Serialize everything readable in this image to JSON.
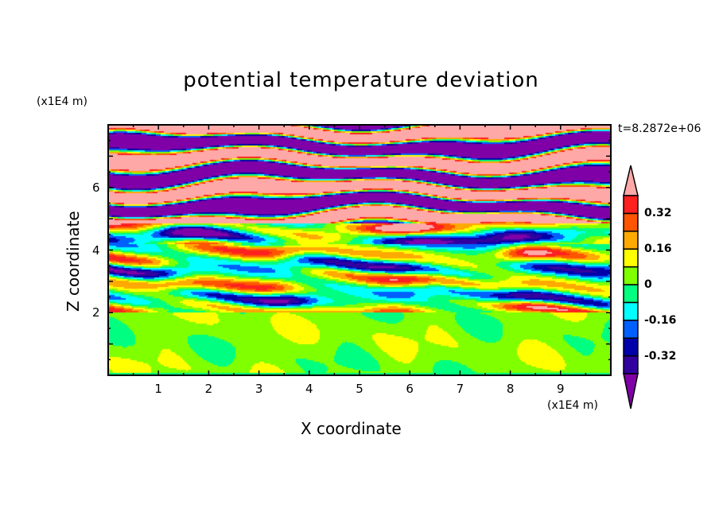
{
  "chart_data": {
    "type": "heatmap",
    "subtype": "filled-contour",
    "title": "potential temperature deviation",
    "xlabel": "X coordinate",
    "ylabel": "Z coordinate",
    "x_units": "(x1E4 m)",
    "z_units": "(x1E4 m)",
    "time_label": "t=8.2872e+06",
    "xlim": [
      0,
      10
    ],
    "ylim": [
      0,
      8
    ],
    "x_ticks": [
      "1",
      "2",
      "3",
      "4",
      "5",
      "6",
      "7",
      "8",
      "9"
    ],
    "y_ticks": [
      "2",
      "4",
      "6"
    ],
    "colorbar": {
      "levels": [
        -0.4,
        -0.32,
        -0.24,
        -0.16,
        -0.08,
        0,
        0.08,
        0.16,
        0.24,
        0.32,
        0.4
      ],
      "labels": [
        "0.32",
        "0.16",
        "0",
        "-0.16",
        "-0.32"
      ],
      "label_values": [
        0.32,
        0.16,
        0,
        -0.16,
        -0.32
      ],
      "colors_low_to_high": [
        "#8000a8",
        "#3300a0",
        "#0000aa",
        "#0060ff",
        "#00ffff",
        "#00ff80",
        "#80ff00",
        "#ffff00",
        "#ffaa00",
        "#ff5500",
        "#ff2020",
        "#ffa8a8"
      ],
      "extend": "both"
    },
    "description_regions": [
      {
        "z_range": [
          5,
          8
        ],
        "pattern": "alternating layers above 0.4 and below -0.4"
      },
      {
        "z_range": [
          2,
          5
        ],
        "pattern": "mixed layered values between -0.4 and 0.4"
      },
      {
        "z_range": [
          0,
          2
        ],
        "pattern": "near-zero values, 0 to 0.08 with -0.08 to 0 patches"
      }
    ]
  }
}
